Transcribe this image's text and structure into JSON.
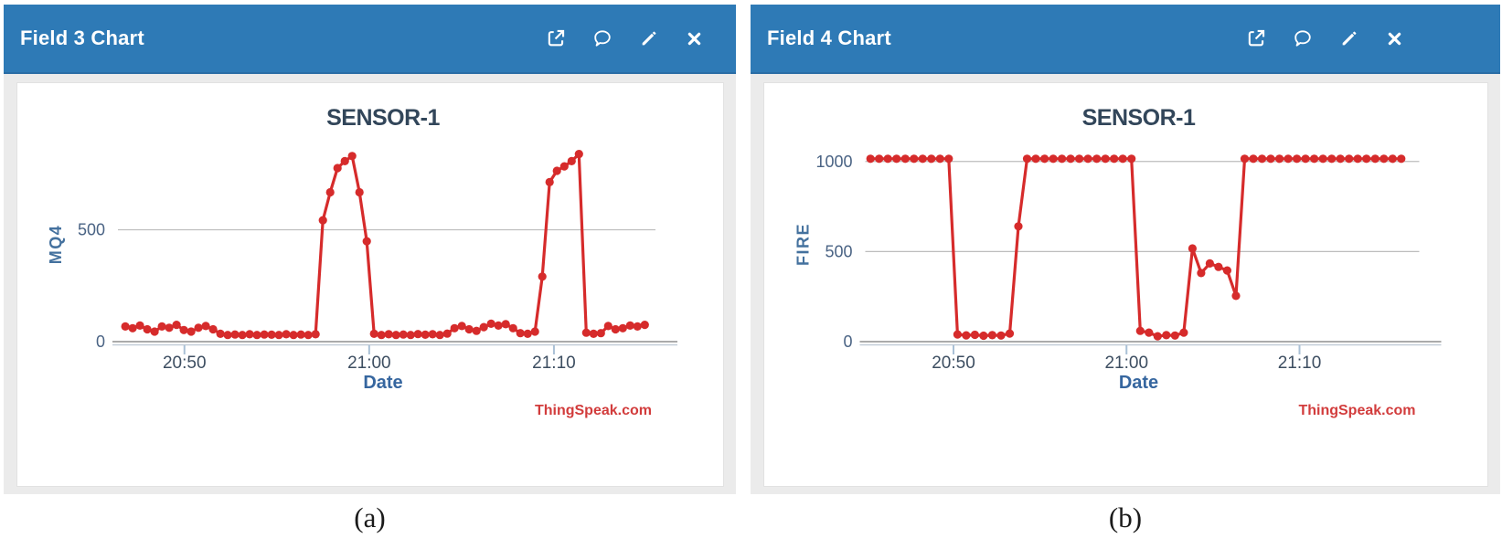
{
  "theme": {
    "header_blue": "#2e7ab6",
    "panel_body_gray": "#ebebeb",
    "chart_red": "#d62b2b",
    "title_slate": "#32465a",
    "axis_label_blue": "#44719e",
    "date_label_blue": "#36669f",
    "tick_label_navy": "#4a6384",
    "watermark_red": "#d23c3c",
    "grid_gray": "#bdbdbd"
  },
  "panels": [
    {
      "header": {
        "title": "Field 3 Chart",
        "icons": [
          "external-link-icon",
          "comment-icon",
          "edit-icon",
          "close-icon"
        ]
      }
    },
    {
      "header": {
        "title": "Field 4 Chart",
        "icons": [
          "external-link-icon",
          "comment-icon",
          "edit-icon",
          "close-icon"
        ]
      }
    }
  ],
  "chart_data": [
    {
      "type": "line",
      "title": "SENSOR-1",
      "xlabel": "Date",
      "ylabel": "MQ4",
      "watermark": "ThingSpeak.com",
      "line_color": "#d62b2b",
      "marker": "circle",
      "grid": "horizontal-only",
      "x_unit": "minutes after 20:00",
      "xlim": [
        46.4,
        75.1
      ],
      "ylim": [
        0,
        870
      ],
      "x_ticks": [
        {
          "t": 50,
          "label": "20:50"
        },
        {
          "t": 60,
          "label": "21:00"
        },
        {
          "t": 70,
          "label": "21:10"
        }
      ],
      "y_ticks": [
        {
          "v": 500,
          "label": "500"
        },
        {
          "v": 0,
          "label": "0"
        }
      ],
      "y_gridlines": [
        500
      ],
      "t_start": 46.8,
      "t_step": 0.396,
      "values": [
        68,
        60,
        72,
        55,
        45,
        68,
        62,
        75,
        52,
        45,
        62,
        70,
        55,
        35,
        30,
        32,
        30,
        33,
        30,
        32,
        31,
        30,
        33,
        30,
        32,
        30,
        33,
        543,
        668,
        776,
        807,
        830,
        668,
        449,
        35,
        30,
        33,
        30,
        32,
        30,
        34,
        31,
        33,
        30,
        36,
        60,
        70,
        55,
        48,
        65,
        80,
        72,
        78,
        60,
        38,
        35,
        45,
        291,
        713,
        764,
        784,
        807,
        839,
        40,
        35,
        38,
        70,
        55,
        60,
        72,
        68,
        75
      ]
    },
    {
      "type": "line",
      "title": "SENSOR-1",
      "xlabel": "Date",
      "ylabel": "FIRE",
      "watermark": "ThingSpeak.com",
      "line_color": "#d62b2b",
      "marker": "circle",
      "grid": "horizontal-only",
      "x_unit": "minutes after 20:00",
      "xlim": [
        44.9,
        76.5
      ],
      "ylim": [
        0,
        1080
      ],
      "x_ticks": [
        {
          "t": 50,
          "label": "20:50"
        },
        {
          "t": 60,
          "label": "21:00"
        },
        {
          "t": 70,
          "label": "21:10"
        }
      ],
      "y_ticks": [
        {
          "v": 1000,
          "label": "1000"
        },
        {
          "v": 500,
          "label": "500"
        },
        {
          "v": 0,
          "label": "0"
        }
      ],
      "y_gridlines": [
        500,
        1000
      ],
      "t_start": 45.2,
      "t_step": 0.503,
      "values": [
        1015,
        1015,
        1015,
        1015,
        1015,
        1015,
        1015,
        1015,
        1015,
        1015,
        40,
        35,
        38,
        33,
        36,
        34,
        45,
        640,
        1015,
        1015,
        1015,
        1015,
        1015,
        1015,
        1015,
        1015,
        1015,
        1015,
        1015,
        1015,
        1015,
        60,
        50,
        30,
        36,
        34,
        50,
        517,
        381,
        434,
        415,
        395,
        254,
        1015,
        1015,
        1015,
        1015,
        1015,
        1015,
        1015,
        1015,
        1015,
        1015,
        1015,
        1015,
        1015,
        1015,
        1015,
        1015,
        1015,
        1015,
        1015
      ]
    }
  ],
  "captions": [
    "(a)",
    "(b)"
  ]
}
